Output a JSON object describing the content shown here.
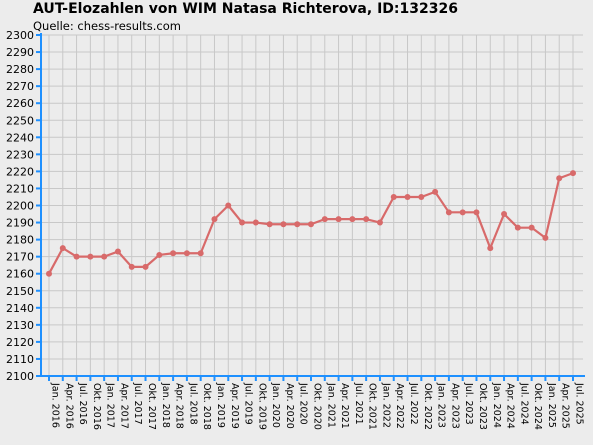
{
  "title": "AUT-Elozahlen von WIM Natasa Richterova, ID:132326",
  "subtitle": "Quelle: chess-results.com",
  "colors": {
    "background": "#ececec",
    "grid": "#c8c8c8",
    "axis": "#1e90ff",
    "series": "#d86a6a"
  },
  "chart_data": {
    "type": "line",
    "title": "AUT-Elozahlen von WIM Natasa Richterova, ID:132326",
    "subtitle": "Quelle: chess-results.com",
    "xlabel": "",
    "ylabel": "",
    "ylim": [
      2100,
      2300
    ],
    "ytick_step": 10,
    "grid": true,
    "categories": [
      "Jan. 2016",
      "Apr. 2016",
      "Jul. 2016",
      "Okt. 2016",
      "Jan. 2017",
      "Apr. 2017",
      "Jul. 2017",
      "Okt. 2017",
      "Jan. 2018",
      "Apr. 2018",
      "Jul. 2018",
      "Okt. 2018",
      "Jan. 2019",
      "Apr. 2019",
      "Jul. 2019",
      "Okt. 2019",
      "Jan. 2020",
      "Apr. 2020",
      "Jul. 2020",
      "Okt. 2020",
      "Jan. 2021",
      "Apr. 2021",
      "Jul. 2021",
      "Okt. 2021",
      "Jan. 2022",
      "Apr. 2022",
      "Jul. 2022",
      "Okt. 2022",
      "Jan. 2023",
      "Apr. 2023",
      "Jul. 2023",
      "Okt. 2023",
      "Jan. 2024",
      "Apr. 2024",
      "Jul. 2024",
      "Okt. 2024",
      "Jan. 2025",
      "Apr. 2025",
      "Jul. 2025"
    ],
    "series": [
      {
        "values": [
          2160,
          2175,
          2170,
          2170,
          2170,
          2173,
          2164,
          2164,
          2171,
          2172,
          2172,
          2172,
          2192,
          2200,
          2190,
          2190,
          2189,
          2189,
          2189,
          2189,
          2192,
          2192,
          2192,
          2192,
          2190,
          2205,
          2205,
          2205,
          2208,
          2196,
          2196,
          2196,
          2175,
          2195,
          2187,
          2187,
          2181,
          2216,
          2219
        ]
      }
    ]
  }
}
